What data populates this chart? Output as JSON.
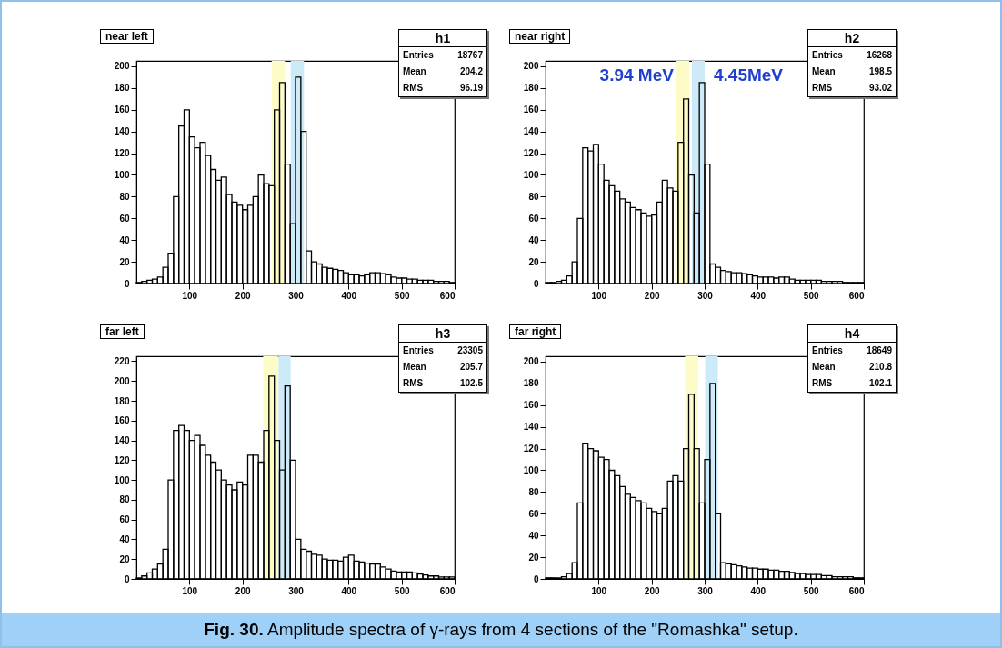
{
  "chart_data": [
    {
      "type": "histogram",
      "title": "near left",
      "xlim": [
        0,
        600
      ],
      "ylim": [
        0,
        205
      ],
      "xticks": [
        100,
        200,
        300,
        400,
        500,
        600
      ],
      "yticks": [
        0,
        20,
        40,
        60,
        80,
        100,
        120,
        140,
        160,
        180,
        200
      ],
      "bins": [
        0,
        10,
        20,
        30,
        40,
        50,
        60,
        70,
        80,
        90,
        100,
        110,
        120,
        130,
        140,
        150,
        160,
        170,
        180,
        190,
        200,
        210,
        220,
        230,
        240,
        250,
        260,
        270,
        280,
        290,
        300,
        310,
        320,
        330,
        340,
        350,
        360,
        370,
        380,
        390,
        400,
        410,
        420,
        430,
        440,
        450,
        460,
        470,
        480,
        490,
        500,
        510,
        520,
        530,
        540,
        550,
        560,
        570,
        580,
        590,
        600
      ],
      "values": [
        1,
        2,
        3,
        4,
        6,
        15,
        28,
        80,
        145,
        160,
        135,
        125,
        130,
        118,
        105,
        95,
        98,
        82,
        75,
        72,
        68,
        72,
        80,
        100,
        92,
        90,
        160,
        185,
        110,
        55,
        190,
        140,
        30,
        20,
        18,
        15,
        14,
        13,
        12,
        10,
        8,
        8,
        7,
        8,
        10,
        10,
        9,
        8,
        6,
        5,
        5,
        4,
        4,
        3,
        3,
        3,
        2,
        2,
        2,
        1
      ],
      "bands": [
        {
          "axis": "x",
          "from": 255,
          "to": 280,
          "color": "#fdfbc6"
        },
        {
          "axis": "x",
          "from": 291,
          "to": 316,
          "color": "#cdeaf8"
        }
      ],
      "annotations": [
        "h1",
        "Entries",
        "18767",
        "Mean",
        "204.2",
        "RMS",
        "96.19"
      ]
    },
    {
      "type": "histogram",
      "title": "near right",
      "xlim": [
        0,
        600
      ],
      "ylim": [
        0,
        205
      ],
      "xticks": [
        100,
        200,
        300,
        400,
        500,
        600
      ],
      "yticks": [
        0,
        20,
        40,
        60,
        80,
        100,
        120,
        140,
        160,
        180,
        200
      ],
      "bins": [
        0,
        10,
        20,
        30,
        40,
        50,
        60,
        70,
        80,
        90,
        100,
        110,
        120,
        130,
        140,
        150,
        160,
        170,
        180,
        190,
        200,
        210,
        220,
        230,
        240,
        250,
        260,
        270,
        280,
        290,
        300,
        310,
        320,
        330,
        340,
        350,
        360,
        370,
        380,
        390,
        400,
        410,
        420,
        430,
        440,
        450,
        460,
        470,
        480,
        490,
        500,
        510,
        520,
        530,
        540,
        550,
        560,
        570,
        580,
        590,
        600
      ],
      "values": [
        1,
        1,
        2,
        3,
        7,
        20,
        60,
        125,
        122,
        128,
        110,
        95,
        90,
        85,
        78,
        75,
        70,
        68,
        65,
        62,
        63,
        75,
        95,
        88,
        85,
        130,
        170,
        100,
        65,
        185,
        110,
        18,
        15,
        12,
        11,
        10,
        10,
        9,
        8,
        7,
        6,
        6,
        6,
        5,
        6,
        6,
        4,
        3,
        3,
        3,
        3,
        3,
        2,
        2,
        2,
        2,
        1,
        1,
        1,
        1
      ],
      "bands": [
        {
          "axis": "x",
          "from": 245,
          "to": 271,
          "color": "#fdfbc6",
          "label": "3.94 MeV"
        },
        {
          "axis": "x",
          "from": 276,
          "to": 300,
          "color": "#cdeaf8",
          "label": "4.45MeV"
        }
      ],
      "annotations": [
        "h2",
        "Entries",
        "16268",
        "Mean",
        "198.5",
        "RMS",
        "93.02"
      ]
    },
    {
      "type": "histogram",
      "title": "far left",
      "xlim": [
        0,
        600
      ],
      "ylim": [
        0,
        225
      ],
      "xticks": [
        100,
        200,
        300,
        400,
        500,
        600
      ],
      "yticks": [
        0,
        20,
        40,
        60,
        80,
        100,
        120,
        140,
        160,
        180,
        200,
        220
      ],
      "bins": [
        0,
        10,
        20,
        30,
        40,
        50,
        60,
        70,
        80,
        90,
        100,
        110,
        120,
        130,
        140,
        150,
        160,
        170,
        180,
        190,
        200,
        210,
        220,
        230,
        240,
        250,
        260,
        270,
        280,
        290,
        300,
        310,
        320,
        330,
        340,
        350,
        360,
        370,
        380,
        390,
        400,
        410,
        420,
        430,
        440,
        450,
        460,
        470,
        480,
        490,
        500,
        510,
        520,
        530,
        540,
        550,
        560,
        570,
        580,
        590,
        600
      ],
      "values": [
        1,
        3,
        6,
        10,
        15,
        30,
        100,
        150,
        155,
        150,
        140,
        145,
        135,
        125,
        118,
        110,
        100,
        95,
        90,
        98,
        95,
        125,
        125,
        118,
        150,
        205,
        140,
        110,
        195,
        120,
        40,
        30,
        28,
        25,
        24,
        20,
        19,
        19,
        18,
        22,
        24,
        18,
        17,
        16,
        15,
        15,
        12,
        10,
        8,
        7,
        7,
        7,
        6,
        5,
        4,
        3,
        3,
        2,
        2,
        2
      ],
      "bands": [
        {
          "axis": "x",
          "from": 239,
          "to": 267,
          "color": "#fdfbc6"
        },
        {
          "axis": "x",
          "from": 268,
          "to": 291,
          "color": "#cdeaf8"
        }
      ],
      "annotations": [
        "h3",
        "Entries",
        "23305",
        "Mean",
        "205.7",
        "RMS",
        "102.5"
      ]
    },
    {
      "type": "histogram",
      "title": "far right",
      "xlim": [
        0,
        600
      ],
      "ylim": [
        0,
        205
      ],
      "xticks": [
        100,
        200,
        300,
        400,
        500,
        600
      ],
      "yticks": [
        0,
        20,
        40,
        60,
        80,
        100,
        120,
        140,
        160,
        180,
        200
      ],
      "bins": [
        0,
        10,
        20,
        30,
        40,
        50,
        60,
        70,
        80,
        90,
        100,
        110,
        120,
        130,
        140,
        150,
        160,
        170,
        180,
        190,
        200,
        210,
        220,
        230,
        240,
        250,
        260,
        270,
        280,
        290,
        300,
        310,
        320,
        330,
        340,
        350,
        360,
        370,
        380,
        390,
        400,
        410,
        420,
        430,
        440,
        450,
        460,
        470,
        480,
        490,
        500,
        510,
        520,
        530,
        540,
        550,
        560,
        570,
        580,
        590,
        600
      ],
      "values": [
        1,
        1,
        1,
        2,
        5,
        15,
        70,
        125,
        120,
        118,
        112,
        110,
        100,
        95,
        85,
        78,
        75,
        72,
        70,
        65,
        62,
        60,
        65,
        90,
        95,
        90,
        120,
        170,
        120,
        70,
        110,
        180,
        60,
        15,
        14,
        13,
        12,
        11,
        10,
        10,
        9,
        9,
        8,
        8,
        7,
        7,
        6,
        5,
        5,
        4,
        4,
        4,
        3,
        3,
        2,
        2,
        2,
        2,
        1,
        1
      ],
      "bands": [
        {
          "axis": "x",
          "from": 263,
          "to": 288,
          "color": "#fdfbc6"
        },
        {
          "axis": "x",
          "from": 301,
          "to": 325,
          "color": "#cdeaf8"
        }
      ],
      "annotations": [
        "h4",
        "Entries",
        "18649",
        "Mean",
        "210.8",
        "RMS",
        "102.1",
        "Fig. 30. Amplitude spectra of γ-rays from 4 sections of the \"Romashka\" setup."
      ]
    }
  ]
}
